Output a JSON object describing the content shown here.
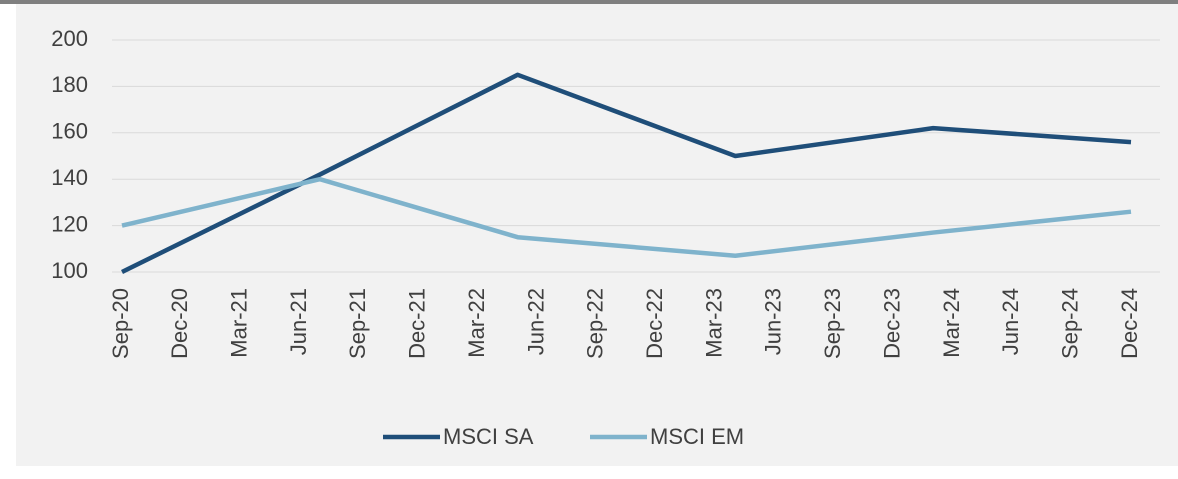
{
  "chart_data": {
    "type": "line",
    "x": [
      0,
      10,
      20,
      31,
      41,
      51
    ],
    "xlim": [
      0,
      51
    ],
    "xticks": [
      {
        "value": 0,
        "label": "Sep-20"
      },
      {
        "value": 3,
        "label": "Dec-20"
      },
      {
        "value": 6,
        "label": "Mar-21"
      },
      {
        "value": 9,
        "label": "Jun-21"
      },
      {
        "value": 12,
        "label": "Sep-21"
      },
      {
        "value": 15,
        "label": "Dec-21"
      },
      {
        "value": 18,
        "label": "Mar-22"
      },
      {
        "value": 21,
        "label": "Jun-22"
      },
      {
        "value": 24,
        "label": "Sep-22"
      },
      {
        "value": 27,
        "label": "Dec-22"
      },
      {
        "value": 30,
        "label": "Mar-23"
      },
      {
        "value": 33,
        "label": "Jun-23"
      },
      {
        "value": 36,
        "label": "Sep-23"
      },
      {
        "value": 39,
        "label": "Dec-23"
      },
      {
        "value": 42,
        "label": "Mar-24"
      },
      {
        "value": 45,
        "label": "Jun-24"
      },
      {
        "value": 48,
        "label": "Sep-24"
      },
      {
        "value": 51,
        "label": "Dec-24"
      }
    ],
    "series": [
      {
        "name": "MSCI SA",
        "color": "#1f4e79",
        "values": [
          100,
          142,
          185,
          150,
          162,
          156
        ]
      },
      {
        "name": "MSCI EM",
        "color": "#7fb3cc",
        "values": [
          120,
          140,
          115,
          107,
          117,
          126
        ]
      }
    ],
    "ylim": [
      100,
      200
    ],
    "yticks": [
      100,
      120,
      140,
      160,
      180,
      200
    ],
    "grid": true,
    "legend": "bottom"
  }
}
